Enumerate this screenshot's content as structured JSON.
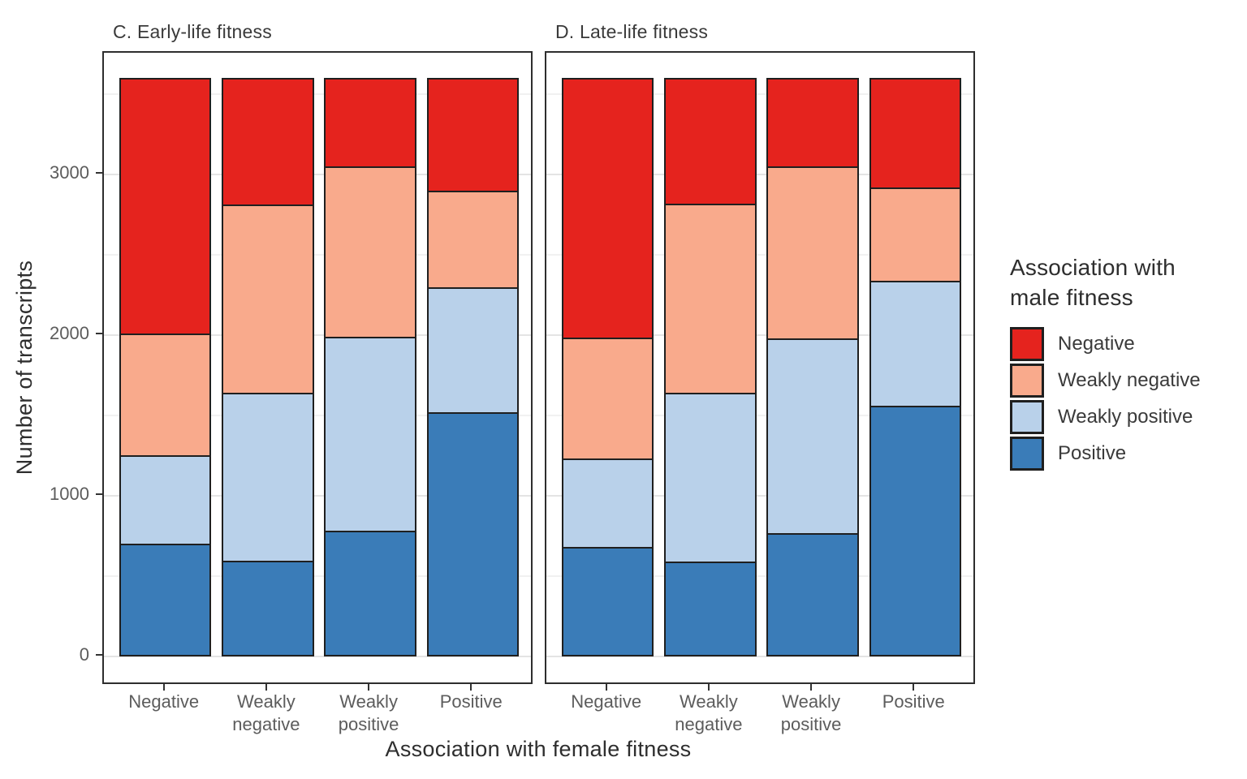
{
  "figure": {
    "y_axis_title": "Number of transcripts",
    "x_axis_title": "Association with female fitness"
  },
  "legend": {
    "title_line1": "Association with",
    "title_line2": "male fitness",
    "items": [
      {
        "label": "Negative",
        "color": "#E5231E"
      },
      {
        "label": "Weakly negative",
        "color": "#F9AA8C"
      },
      {
        "label": "Weakly positive",
        "color": "#B9D1EA"
      },
      {
        "label": "Positive",
        "color": "#3A7CB8"
      }
    ]
  },
  "chart_data": [
    {
      "type": "bar",
      "stacked": true,
      "stack_order": "bottom-to-top",
      "title": "C. Early-life fitness",
      "xlabel": "Association with female fitness",
      "ylabel": "Number of transcripts",
      "categories": [
        "Negative",
        "Weakly negative",
        "Weakly positive",
        "Positive"
      ],
      "category_label_lines": [
        [
          "Negative"
        ],
        [
          "Weakly",
          "negative"
        ],
        [
          "Weakly",
          "positive"
        ],
        [
          "Positive"
        ]
      ],
      "y_major_ticks": [
        0,
        1000,
        2000,
        3000
      ],
      "y_minor_gridlines": [
        500,
        1500,
        2500,
        3500
      ],
      "ylim": [
        0,
        3760
      ],
      "grid": true,
      "legend_position": "right",
      "series": [
        {
          "name": "Positive",
          "color": "#3A7CB8",
          "values": [
            690,
            585,
            775,
            1510
          ]
        },
        {
          "name": "Weakly positive",
          "color": "#B9D1EA",
          "values": [
            550,
            1045,
            1205,
            780
          ]
        },
        {
          "name": "Weakly negative",
          "color": "#F9AA8C",
          "values": [
            760,
            1175,
            1060,
            600
          ]
        },
        {
          "name": "Negative",
          "color": "#E5231E",
          "values": [
            1590,
            785,
            550,
            700
          ]
        }
      ],
      "totals": [
        3590,
        3590,
        3590,
        3590
      ]
    },
    {
      "type": "bar",
      "stacked": true,
      "stack_order": "bottom-to-top",
      "title": "D. Late-life fitness",
      "xlabel": "Association with female fitness",
      "ylabel": "Number of transcripts",
      "categories": [
        "Negative",
        "Weakly negative",
        "Weakly positive",
        "Positive"
      ],
      "category_label_lines": [
        [
          "Negative"
        ],
        [
          "Weakly",
          "negative"
        ],
        [
          "Weakly",
          "positive"
        ],
        [
          "Positive"
        ]
      ],
      "y_major_ticks": [
        0,
        1000,
        2000,
        3000
      ],
      "y_minor_gridlines": [
        500,
        1500,
        2500,
        3500
      ],
      "ylim": [
        0,
        3760
      ],
      "grid": true,
      "legend_position": "right",
      "series": [
        {
          "name": "Positive",
          "color": "#3A7CB8",
          "values": [
            670,
            580,
            760,
            1550
          ]
        },
        {
          "name": "Weakly positive",
          "color": "#B9D1EA",
          "values": [
            550,
            1050,
            1210,
            780
          ]
        },
        {
          "name": "Weakly negative",
          "color": "#F9AA8C",
          "values": [
            755,
            1180,
            1070,
            580
          ]
        },
        {
          "name": "Negative",
          "color": "#E5231E",
          "values": [
            1615,
            780,
            550,
            680
          ]
        }
      ],
      "totals": [
        3590,
        3590,
        3590,
        3590
      ]
    }
  ]
}
